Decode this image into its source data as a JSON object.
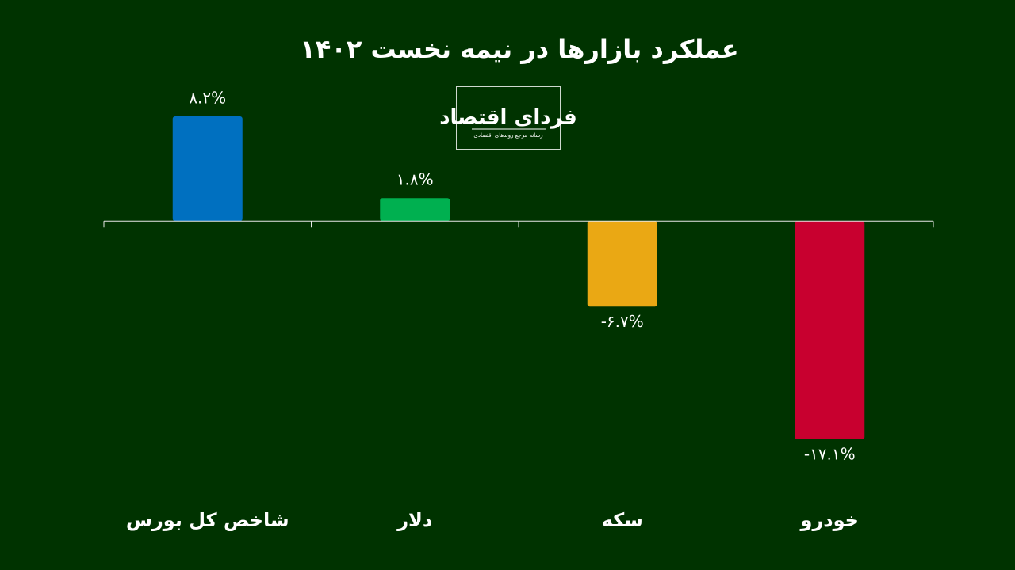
{
  "chart_data": {
    "type": "bar",
    "title": "عملکرد بازارها در نیمه نخست ۱۴۰۲",
    "logo_title": "فردای اقتصاد",
    "logo_subtitle": "رسانه مرجع روندهای اقتصادی",
    "categories": [
      "شاخص کل بورس",
      "دلار",
      "سکه",
      "خودرو"
    ],
    "values": [
      8.2,
      1.8,
      -6.7,
      -17.1
    ],
    "value_labels": [
      "۸.۲%",
      "۱.۸%",
      "-۶.۷%",
      "-۱۷.۱%"
    ],
    "colors": [
      "#0070c0",
      "#00b050",
      "#eaa814",
      "#c8002f"
    ]
  }
}
